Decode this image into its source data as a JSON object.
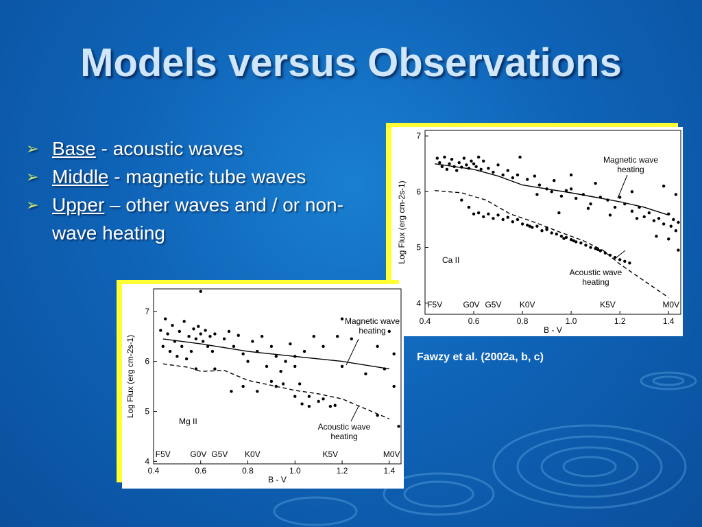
{
  "slide": {
    "title": "Models versus Observations",
    "bullets": [
      {
        "term": "Base",
        "rest": "  - acoustic waves"
      },
      {
        "term": "Middle",
        "rest": " - magnetic  tube waves"
      },
      {
        "term": "Upper",
        "rest": " – other waves and / or non-wave heating"
      }
    ],
    "caption": "Fawzy et al. (2002a, b, c)"
  },
  "colors": {
    "background": "#0f64b8",
    "title": "#cfe6fb",
    "bullet_arrow": "#c6e879",
    "panel_border": "#ffff33"
  },
  "chart_data": [
    {
      "type": "scatter",
      "ion_label": "Ca  II",
      "xlabel": "B - V",
      "ylabel": "Log Flux  (erg cm-2s-1)",
      "xlim": [
        0.4,
        1.45
      ],
      "ylim": [
        3.8,
        7.1
      ],
      "x_ticks": [
        "0.4",
        "0.6",
        "0.8",
        "1.0",
        "1.2",
        "1.4"
      ],
      "y_ticks": [
        "4",
        "5",
        "6",
        "7"
      ],
      "spectral_types": [
        {
          "label": "F5V",
          "x": 0.44
        },
        {
          "label": "G0V",
          "x": 0.59
        },
        {
          "label": "G5V",
          "x": 0.68
        },
        {
          "label": "K0V",
          "x": 0.82
        },
        {
          "label": "K5V",
          "x": 1.15
        },
        {
          "label": "M0V",
          "x": 1.41
        }
      ],
      "annotations": [
        {
          "text": "Magnetic wave",
          "text2": "heating"
        },
        {
          "text": "Acoustic wave",
          "text2": "heating"
        }
      ],
      "series": [
        {
          "name": "Magnetic wave heating",
          "style": "solid",
          "x": [
            0.44,
            0.6,
            0.7,
            0.8,
            0.9,
            1.0,
            1.1,
            1.2,
            1.3,
            1.4
          ],
          "y": [
            6.5,
            6.4,
            6.28,
            6.12,
            6.05,
            5.98,
            5.9,
            5.82,
            5.72,
            5.58
          ]
        },
        {
          "name": "Acoustic wave heating",
          "style": "dashed",
          "x": [
            0.44,
            0.55,
            0.65,
            0.75,
            0.85,
            0.95,
            1.05,
            1.13,
            1.2,
            1.3,
            1.4
          ],
          "y": [
            6.02,
            5.98,
            5.85,
            5.6,
            5.45,
            5.28,
            5.12,
            4.95,
            4.7,
            4.4,
            4.1
          ]
        }
      ],
      "points_note": "observed stars",
      "points": [
        [
          0.45,
          6.6
        ],
        [
          0.46,
          6.52
        ],
        [
          0.47,
          6.45
        ],
        [
          0.48,
          6.62
        ],
        [
          0.49,
          6.4
        ],
        [
          0.5,
          6.5
        ],
        [
          0.51,
          6.58
        ],
        [
          0.52,
          6.45
        ],
        [
          0.53,
          6.38
        ],
        [
          0.54,
          6.52
        ],
        [
          0.55,
          6.44
        ],
        [
          0.56,
          6.6
        ],
        [
          0.57,
          6.48
        ],
        [
          0.58,
          6.42
        ],
        [
          0.59,
          6.55
        ],
        [
          0.6,
          6.5
        ],
        [
          0.61,
          6.45
        ],
        [
          0.62,
          6.62
        ],
        [
          0.63,
          6.4
        ],
        [
          0.64,
          6.55
        ],
        [
          0.66,
          6.42
        ],
        [
          0.68,
          6.35
        ],
        [
          0.7,
          6.48
        ],
        [
          0.72,
          6.3
        ],
        [
          0.74,
          6.38
        ],
        [
          0.76,
          6.25
        ],
        [
          0.78,
          6.3
        ],
        [
          0.79,
          6.62
        ],
        [
          0.82,
          6.22
        ],
        [
          0.85,
          6.28
        ],
        [
          0.87,
          6.12
        ],
        [
          0.9,
          6.05
        ],
        [
          0.93,
          6.2
        ],
        [
          0.96,
          5.92
        ],
        [
          1.0,
          6.05
        ],
        [
          1.02,
          5.88
        ],
        [
          1.05,
          5.95
        ],
        [
          1.08,
          5.78
        ],
        [
          1.12,
          5.9
        ],
        [
          1.15,
          5.85
        ],
        [
          1.18,
          5.72
        ],
        [
          1.2,
          5.9
        ],
        [
          1.22,
          5.78
        ],
        [
          1.25,
          5.65
        ],
        [
          1.28,
          5.72
        ],
        [
          1.3,
          5.55
        ],
        [
          1.32,
          5.62
        ],
        [
          1.34,
          5.48
        ],
        [
          1.36,
          5.52
        ],
        [
          1.38,
          5.42
        ],
        [
          1.4,
          5.6
        ],
        [
          1.41,
          5.38
        ],
        [
          1.42,
          5.5
        ],
        [
          1.43,
          5.3
        ],
        [
          1.44,
          5.45
        ],
        [
          1.35,
          5.2
        ],
        [
          1.4,
          5.15
        ],
        [
          1.44,
          4.95
        ],
        [
          1.1,
          6.15
        ],
        [
          1.25,
          6.0
        ],
        [
          1.0,
          6.3
        ],
        [
          0.92,
          6.0
        ],
        [
          0.86,
          5.95
        ],
        [
          0.95,
          5.62
        ],
        [
          1.07,
          5.7
        ],
        [
          1.16,
          5.58
        ],
        [
          1.27,
          5.52
        ],
        [
          1.38,
          6.1
        ],
        [
          1.43,
          5.95
        ],
        [
          0.98,
          6.02
        ],
        [
          0.62,
          5.62
        ],
        [
          0.64,
          5.55
        ],
        [
          0.66,
          5.6
        ],
        [
          0.68,
          5.52
        ],
        [
          0.7,
          5.58
        ],
        [
          0.72,
          5.5
        ],
        [
          0.74,
          5.54
        ],
        [
          0.76,
          5.46
        ],
        [
          0.78,
          5.5
        ],
        [
          0.8,
          5.42
        ],
        [
          0.82,
          5.4
        ],
        [
          0.84,
          5.36
        ],
        [
          0.86,
          5.38
        ],
        [
          0.88,
          5.3
        ],
        [
          0.9,
          5.32
        ],
        [
          0.92,
          5.26
        ],
        [
          0.94,
          5.24
        ],
        [
          0.96,
          5.2
        ],
        [
          0.98,
          5.18
        ],
        [
          1.0,
          5.14
        ],
        [
          1.02,
          5.1
        ],
        [
          1.04,
          5.08
        ],
        [
          1.06,
          5.04
        ],
        [
          1.08,
          5.0
        ],
        [
          1.1,
          4.98
        ],
        [
          1.12,
          4.94
        ],
        [
          1.14,
          4.9
        ],
        [
          1.16,
          4.86
        ],
        [
          1.18,
          4.82
        ],
        [
          1.2,
          4.78
        ],
        [
          1.22,
          4.75
        ],
        [
          1.24,
          4.72
        ],
        [
          0.55,
          5.85
        ],
        [
          0.58,
          5.72
        ],
        [
          0.6,
          5.6
        ],
        [
          0.9,
          5.35
        ],
        [
          1.01,
          5.12
        ],
        [
          1.11,
          4.96
        ],
        [
          0.83,
          5.38
        ],
        [
          0.97,
          5.16
        ]
      ]
    },
    {
      "type": "scatter",
      "ion_label": "Mg  II",
      "xlabel": "B - V",
      "ylabel": "Log Flux  (erg cm-2s-1)",
      "xlim": [
        0.4,
        1.45
      ],
      "ylim": [
        3.95,
        7.45
      ],
      "x_ticks": [
        "0.4",
        "0.6",
        "0.8",
        "1.0",
        "1.2",
        "1.4"
      ],
      "y_ticks": [
        "4",
        "5",
        "6",
        "7"
      ],
      "spectral_types": [
        {
          "label": "F5V",
          "x": 0.44
        },
        {
          "label": "G0V",
          "x": 0.59
        },
        {
          "label": "G5V",
          "x": 0.68
        },
        {
          "label": "K0V",
          "x": 0.82
        },
        {
          "label": "K5V",
          "x": 1.15
        },
        {
          "label": "M0V",
          "x": 1.41
        }
      ],
      "annotations": [
        {
          "text": "Magnetic wave",
          "text2": "heating"
        },
        {
          "text": "Acoustic wave",
          "text2": "heating"
        }
      ],
      "series": [
        {
          "name": "Magnetic wave heating",
          "style": "solid",
          "x": [
            0.44,
            0.6,
            0.8,
            1.0,
            1.2,
            1.4
          ],
          "y": [
            6.45,
            6.35,
            6.2,
            6.1,
            6.0,
            5.85
          ]
        },
        {
          "name": "Acoustic wave heating",
          "style": "dashed",
          "x": [
            0.44,
            0.55,
            0.6,
            0.7,
            0.8,
            0.9,
            1.0,
            1.1,
            1.2,
            1.3,
            1.4
          ],
          "y": [
            5.95,
            5.88,
            5.8,
            5.82,
            5.62,
            5.52,
            5.42,
            5.35,
            5.25,
            5.05,
            4.85
          ]
        }
      ],
      "points_note": "observed stars",
      "points": [
        [
          0.43,
          6.62
        ],
        [
          0.44,
          6.3
        ],
        [
          0.45,
          6.85
        ],
        [
          0.46,
          6.55
        ],
        [
          0.47,
          6.2
        ],
        [
          0.48,
          6.72
        ],
        [
          0.49,
          6.4
        ],
        [
          0.5,
          6.1
        ],
        [
          0.51,
          6.6
        ],
        [
          0.52,
          6.3
        ],
        [
          0.53,
          6.8
        ],
        [
          0.54,
          6.05
        ],
        [
          0.55,
          6.5
        ],
        [
          0.56,
          6.2
        ],
        [
          0.57,
          6.65
        ],
        [
          0.58,
          6.45
        ],
        [
          0.59,
          6.7
        ],
        [
          0.6,
          6.55
        ],
        [
          0.61,
          6.4
        ],
        [
          0.62,
          6.62
        ],
        [
          0.63,
          6.3
        ],
        [
          0.64,
          6.5
        ],
        [
          0.65,
          6.2
        ],
        [
          0.66,
          6.55
        ],
        [
          0.7,
          6.45
        ],
        [
          0.72,
          6.6
        ],
        [
          0.74,
          6.3
        ],
        [
          0.76,
          6.52
        ],
        [
          0.78,
          6.15
        ],
        [
          0.8,
          6.0
        ],
        [
          0.82,
          6.4
        ],
        [
          0.84,
          6.2
        ],
        [
          0.86,
          6.5
        ],
        [
          0.88,
          5.9
        ],
        [
          0.9,
          6.3
        ],
        [
          0.92,
          6.1
        ],
        [
          0.94,
          5.8
        ],
        [
          0.96,
          6.0
        ],
        [
          0.98,
          6.35
        ],
        [
          1.0,
          6.1
        ],
        [
          1.02,
          5.55
        ],
        [
          1.04,
          6.2
        ],
        [
          1.06,
          5.3
        ],
        [
          1.08,
          6.5
        ],
        [
          1.1,
          5.2
        ],
        [
          1.12,
          6.3
        ],
        [
          1.15,
          5.1
        ],
        [
          1.18,
          6.5
        ],
        [
          1.2,
          5.9
        ],
        [
          1.24,
          6.45
        ],
        [
          1.3,
          5.75
        ],
        [
          1.35,
          6.3
        ],
        [
          1.38,
          5.85
        ],
        [
          1.4,
          6.6
        ],
        [
          1.42,
          5.5
        ],
        [
          1.44,
          4.7
        ],
        [
          0.78,
          5.5
        ],
        [
          0.84,
          5.4
        ],
        [
          0.9,
          5.6
        ],
        [
          0.95,
          5.55
        ],
        [
          1.0,
          5.3
        ],
        [
          1.03,
          5.15
        ],
        [
          1.06,
          5.1
        ],
        [
          1.12,
          5.25
        ],
        [
          1.17,
          5.12
        ],
        [
          1.35,
          4.92
        ],
        [
          0.6,
          7.4
        ],
        [
          1.2,
          6.85
        ],
        [
          1.42,
          6.15
        ],
        [
          0.73,
          5.4
        ],
        [
          0.58,
          5.85
        ],
        [
          0.66,
          5.85
        ],
        [
          0.92,
          5.5
        ],
        [
          1.0,
          5.9
        ]
      ]
    }
  ]
}
